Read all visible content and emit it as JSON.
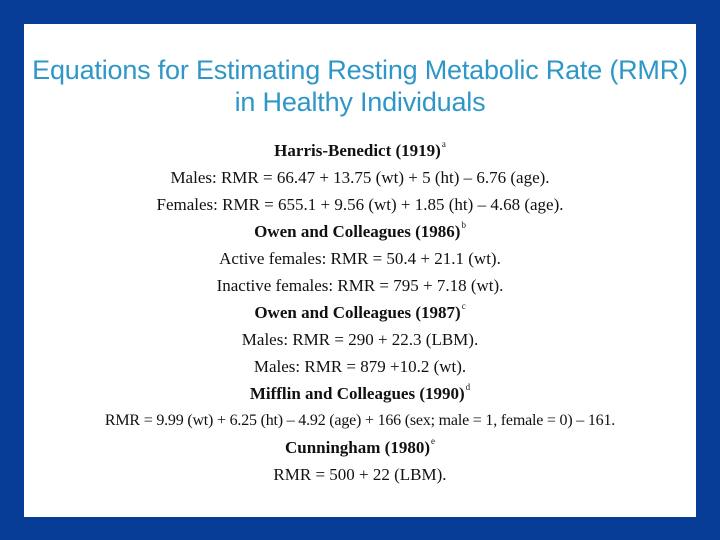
{
  "title": {
    "line1": "Equations for Estimating Resting Metabolic Rate (RMR)",
    "line2": "in Healthy Individuals"
  },
  "equations": [
    {
      "kind": "head",
      "text": "Harris-Benedict (1919)",
      "sup": "a"
    },
    {
      "kind": "eq",
      "text": "Males: RMR = 66.47 + 13.75 (wt) + 5 (ht) – 6.76 (age)."
    },
    {
      "kind": "eq",
      "text": "Females: RMR = 655.1 + 9.56 (wt) + 1.85 (ht) – 4.68 (age)."
    },
    {
      "kind": "head",
      "text": "Owen and Colleagues (1986)",
      "sup": "b"
    },
    {
      "kind": "eq",
      "text": "Active females: RMR = 50.4 + 21.1 (wt)."
    },
    {
      "kind": "eq",
      "text": "Inactive females: RMR = 795 + 7.18 (wt)."
    },
    {
      "kind": "head",
      "text": "Owen and Colleagues (1987)",
      "sup": "c"
    },
    {
      "kind": "eq",
      "text": "Males: RMR = 290 + 22.3 (LBM)."
    },
    {
      "kind": "eq",
      "text": "Males: RMR = 879 +10.2 (wt)."
    },
    {
      "kind": "head",
      "text": "Mifflin and Colleagues (1990)",
      "sup": "d"
    },
    {
      "kind": "eq-wide",
      "text": "RMR = 9.99 (wt) + 6.25 (ht) – 4.92 (age) + 166 (sex; male = 1, female = 0) – 161."
    },
    {
      "kind": "head",
      "text": "Cunningham (1980)",
      "sup": "e"
    },
    {
      "kind": "eq",
      "text": "RMR = 500 + 22 (LBM)."
    }
  ]
}
